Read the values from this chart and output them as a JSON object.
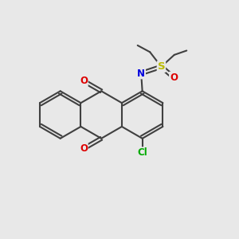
{
  "bg_color": "#e8e8e8",
  "bond_color": "#404040",
  "bond_lw": 1.5,
  "atom_colors": {
    "O": "#dd0000",
    "N": "#0000dd",
    "S": "#bbbb00",
    "Cl": "#00aa00"
  },
  "font_size": 8.5,
  "hex_r": 1.0
}
